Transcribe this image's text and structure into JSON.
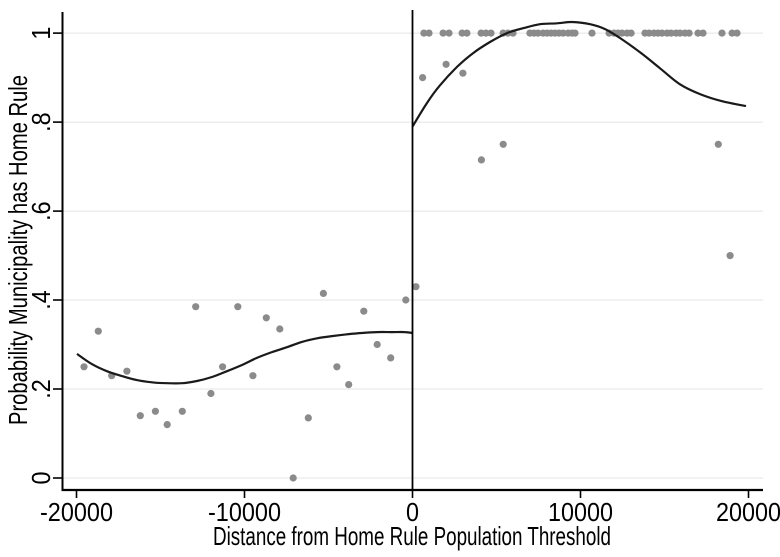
{
  "figure": {
    "background": "#ffffff"
  },
  "chart_data": {
    "type": "scatter",
    "subtype": "regression-discontinuity-binned",
    "title": "",
    "xlabel": "Distance from Home Rule Population Threshold",
    "ylabel": "Probability Municipality has Home Rule",
    "xlim": [
      -20860,
      20860
    ],
    "ylim": [
      -0.027,
      1.052
    ],
    "grid": "horizontal-only",
    "legend": "none",
    "threshold_x": 0,
    "xticks": [
      {
        "v": -20000,
        "label": "-20000"
      },
      {
        "v": -10000,
        "label": "-10000"
      },
      {
        "v": 0,
        "label": "0"
      },
      {
        "v": 10000,
        "label": "10000"
      },
      {
        "v": 20000,
        "label": "20000"
      }
    ],
    "yticks": [
      {
        "v": 0,
        "label": "0"
      },
      {
        "v": 0.2,
        "label": ".2"
      },
      {
        "v": 0.4,
        "label": ".4"
      },
      {
        "v": 0.6,
        "label": ".6"
      },
      {
        "v": 0.8,
        "label": ".8"
      },
      {
        "v": 1,
        "label": "1"
      }
    ],
    "colors": {
      "dot": "#8b8b8b",
      "fit_line": "#1a1a1a",
      "grid": "#e4e4e4",
      "axis": "#000000",
      "threshold": "#000000",
      "text": "#000000"
    },
    "points": [
      [
        -19550,
        0.25
      ],
      [
        -18700,
        0.33
      ],
      [
        -17900,
        0.23
      ],
      [
        -17000,
        0.24
      ],
      [
        -16200,
        0.14
      ],
      [
        -15300,
        0.15
      ],
      [
        -14600,
        0.12
      ],
      [
        -13700,
        0.15
      ],
      [
        -12900,
        0.385
      ],
      [
        -12000,
        0.19
      ],
      [
        -11300,
        0.25
      ],
      [
        -10400,
        0.385
      ],
      [
        -9500,
        0.23
      ],
      [
        -8700,
        0.36
      ],
      [
        -7900,
        0.335
      ],
      [
        -7100,
        0
      ],
      [
        -6200,
        0.135
      ],
      [
        -5300,
        0.415
      ],
      [
        -4500,
        0.25
      ],
      [
        -3800,
        0.21
      ],
      [
        -2900,
        0.375
      ],
      [
        -2100,
        0.3
      ],
      [
        -1300,
        0.27
      ],
      [
        -400,
        0.4
      ],
      [
        200,
        0.43
      ],
      [
        600,
        0.9
      ],
      [
        2000,
        0.93
      ],
      [
        3000,
        0.91
      ],
      [
        4100,
        0.715
      ],
      [
        5400,
        0.75
      ],
      [
        680,
        1
      ],
      [
        980,
        1
      ],
      [
        1820,
        1
      ],
      [
        2170,
        1
      ],
      [
        2950,
        1
      ],
      [
        3240,
        1
      ],
      [
        4080,
        1
      ],
      [
        4370,
        1
      ],
      [
        4670,
        1
      ],
      [
        5390,
        1
      ],
      [
        5680,
        1
      ],
      [
        5980,
        1
      ],
      [
        6990,
        1
      ],
      [
        7230,
        1
      ],
      [
        7470,
        1
      ],
      [
        7770,
        1
      ],
      [
        8010,
        1
      ],
      [
        8250,
        1
      ],
      [
        8480,
        1
      ],
      [
        8720,
        1
      ],
      [
        8960,
        1
      ],
      [
        9260,
        1
      ],
      [
        9490,
        1
      ],
      [
        9670,
        1
      ],
      [
        10680,
        1
      ],
      [
        11700,
        1
      ],
      [
        11990,
        1
      ],
      [
        12230,
        1
      ],
      [
        12470,
        1
      ],
      [
        12770,
        1
      ],
      [
        13010,
        1
      ],
      [
        13840,
        1
      ],
      [
        14080,
        1
      ],
      [
        14370,
        1
      ],
      [
        14610,
        1
      ],
      [
        14850,
        1
      ],
      [
        15150,
        1
      ],
      [
        15390,
        1
      ],
      [
        15690,
        1
      ],
      [
        15920,
        1
      ],
      [
        16220,
        1
      ],
      [
        16460,
        1
      ],
      [
        16990,
        1
      ],
      [
        17290,
        1
      ],
      [
        18420,
        1
      ],
      [
        19020,
        1
      ],
      [
        19310,
        1
      ],
      [
        18200,
        0.75
      ],
      [
        18900,
        0.5
      ]
    ],
    "fit_left": [
      [
        -19970,
        0.279
      ],
      [
        -19080,
        0.256
      ],
      [
        -18190,
        0.24
      ],
      [
        -17290,
        0.229
      ],
      [
        -16400,
        0.22
      ],
      [
        -15510,
        0.215
      ],
      [
        -14610,
        0.213
      ],
      [
        -13720,
        0.213
      ],
      [
        -12830,
        0.218
      ],
      [
        -11930,
        0.227
      ],
      [
        -11040,
        0.24
      ],
      [
        -10150,
        0.254
      ],
      [
        -9260,
        0.27
      ],
      [
        -8360,
        0.283
      ],
      [
        -7470,
        0.294
      ],
      [
        -6580,
        0.306
      ],
      [
        -5680,
        0.314
      ],
      [
        -4790,
        0.319
      ],
      [
        -3900,
        0.323
      ],
      [
        -3010,
        0.326
      ],
      [
        -2110,
        0.328
      ],
      [
        -1220,
        0.328
      ],
      [
        -450,
        0.328
      ],
      [
        0,
        0.326
      ]
    ],
    "fit_right": [
      [
        0,
        0.79
      ],
      [
        860,
        0.843
      ],
      [
        1640,
        0.883
      ],
      [
        2650,
        0.924
      ],
      [
        3600,
        0.955
      ],
      [
        4610,
        0.98
      ],
      [
        5630,
        1.0
      ],
      [
        6580,
        1.011
      ],
      [
        7590,
        1.02
      ],
      [
        8600,
        1.022
      ],
      [
        9490,
        1.025
      ],
      [
        10570,
        1.02
      ],
      [
        11460,
        1.009
      ],
      [
        12350,
        0.989
      ],
      [
        13540,
        0.957
      ],
      [
        14730,
        0.921
      ],
      [
        15920,
        0.885
      ],
      [
        17110,
        0.863
      ],
      [
        18420,
        0.847
      ],
      [
        19850,
        0.836
      ]
    ]
  }
}
